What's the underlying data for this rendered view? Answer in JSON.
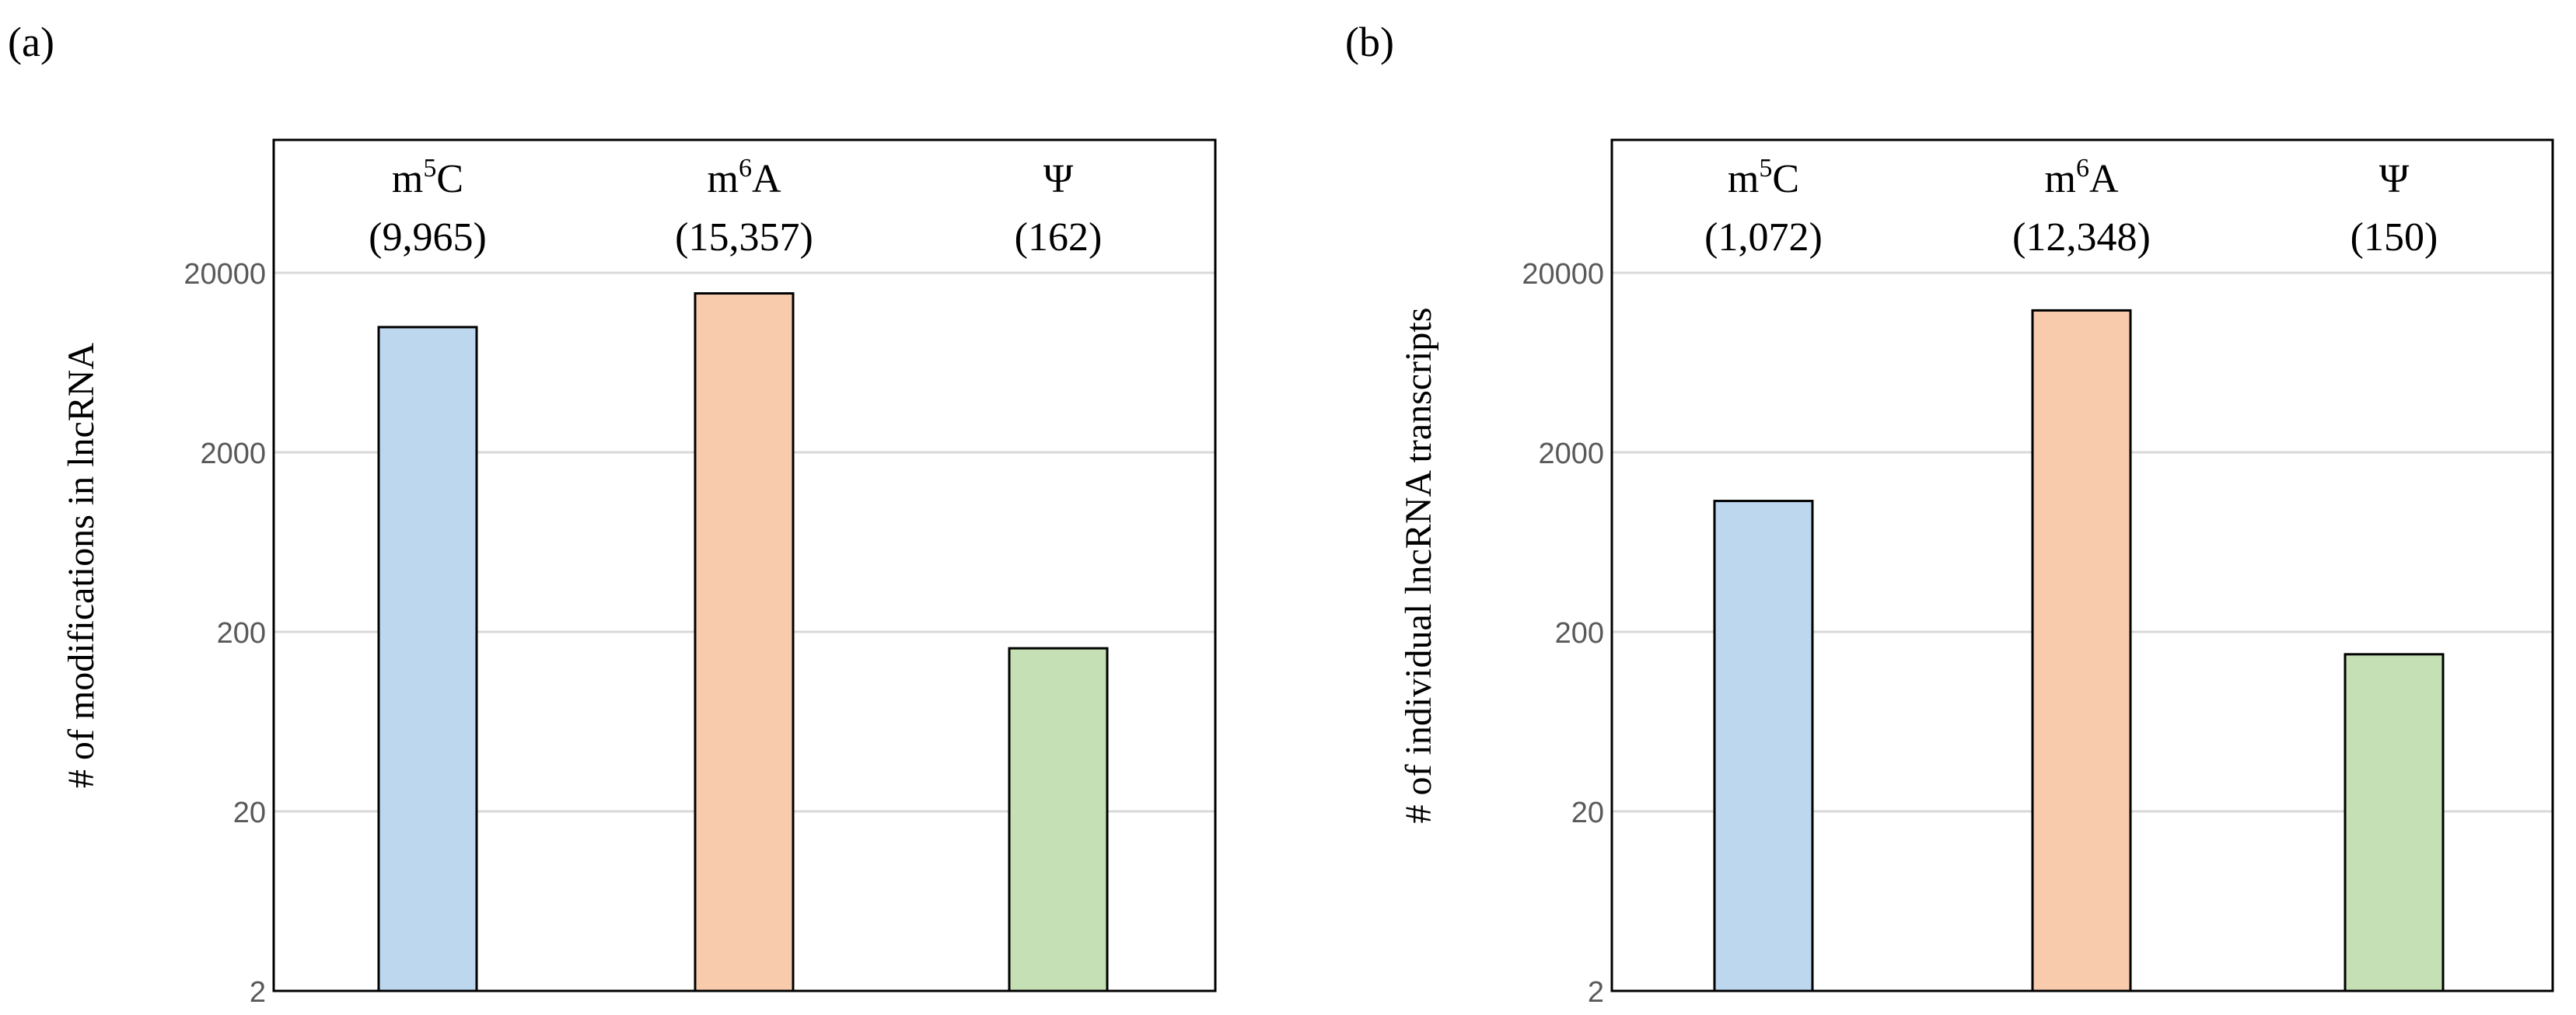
{
  "chart_data": [
    {
      "panel_label": "(a)",
      "type": "bar",
      "scale": "log",
      "ylabel": "# of modifications in lncRNA",
      "yticks": [
        "2",
        "20",
        "200",
        "2000",
        "20000"
      ],
      "ylim": [
        2,
        110000
      ],
      "categories": [
        {
          "base": "m",
          "sup": "5",
          "tail": "C",
          "count_label": "(9,965)",
          "value": 9965,
          "color": "#BDD7EE"
        },
        {
          "base": "m",
          "sup": "6",
          "tail": "A",
          "count_label": "(15,357)",
          "value": 15357,
          "color": "#F8CBAD"
        },
        {
          "base": "Ψ",
          "sup": "",
          "tail": "",
          "count_label": "(162)",
          "value": 162,
          "color": "#C5E0B4"
        }
      ]
    },
    {
      "panel_label": "(b)",
      "type": "bar",
      "scale": "log",
      "ylabel": "# of individual lncRNA transcripts",
      "yticks": [
        "2",
        "20",
        "200",
        "2000",
        "20000"
      ],
      "ylim": [
        2,
        110000
      ],
      "categories": [
        {
          "base": "m",
          "sup": "5",
          "tail": "C",
          "count_label": "(1,072)",
          "value": 1072,
          "color": "#BDD7EE"
        },
        {
          "base": "m",
          "sup": "6",
          "tail": "A",
          "count_label": "(12,348)",
          "value": 12348,
          "color": "#F8CBAD"
        },
        {
          "base": "Ψ",
          "sup": "",
          "tail": "",
          "count_label": "(150)",
          "value": 150,
          "color": "#C5E0B4"
        }
      ]
    }
  ]
}
